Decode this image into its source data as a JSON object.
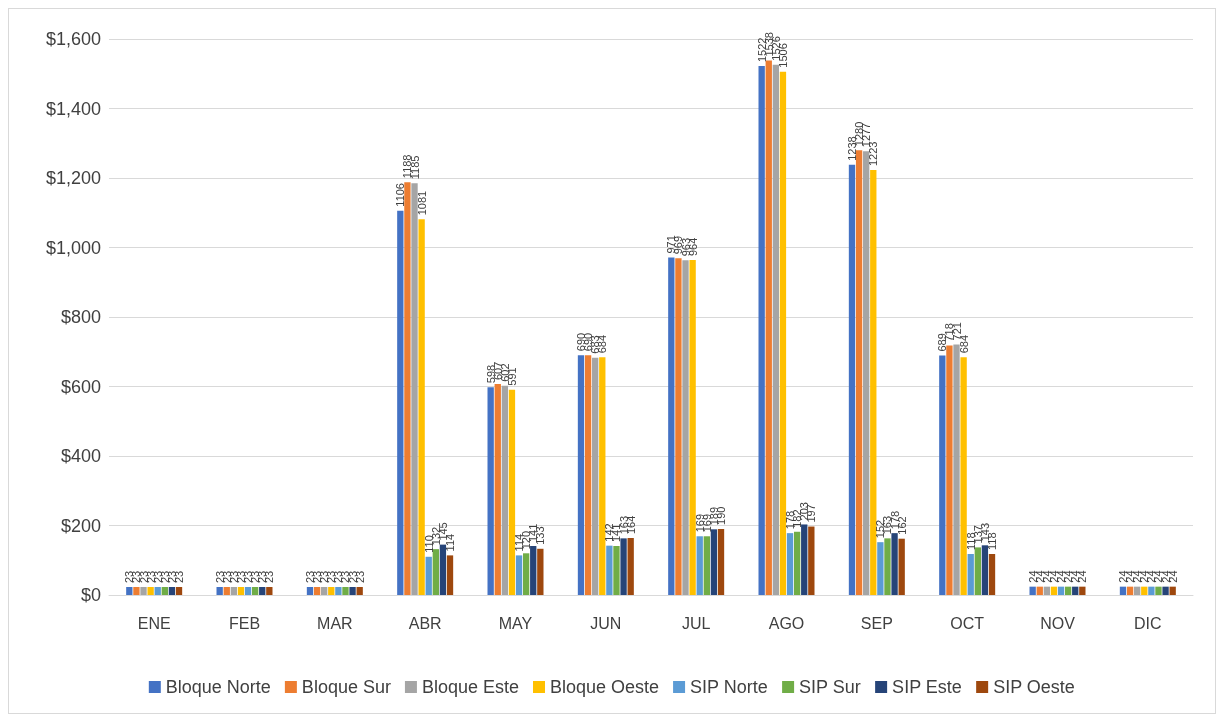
{
  "chart_data": {
    "type": "bar",
    "categories": [
      "ENE",
      "FEB",
      "MAR",
      "ABR",
      "MAY",
      "JUN",
      "JUL",
      "AGO",
      "SEP",
      "OCT",
      "NOV",
      "DIC"
    ],
    "series": [
      {
        "name": "Bloque Norte",
        "color": "#4472c4",
        "values": [
          23,
          23,
          23,
          1106,
          598,
          690,
          971,
          1522,
          1238,
          689,
          24,
          24
        ]
      },
      {
        "name": "Bloque Sur",
        "color": "#ed7d31",
        "values": [
          23,
          23,
          23,
          1188,
          607,
          690,
          969,
          1538,
          1280,
          718,
          24,
          24
        ]
      },
      {
        "name": "Bloque Este",
        "color": "#a5a5a5",
        "values": [
          23,
          23,
          23,
          1185,
          602,
          683,
          963,
          1526,
          1277,
          721,
          24,
          24
        ]
      },
      {
        "name": "Bloque Oeste",
        "color": "#ffc000",
        "values": [
          23,
          23,
          23,
          1081,
          591,
          684,
          964,
          1506,
          1223,
          684,
          24,
          24
        ]
      },
      {
        "name": "SIP Norte",
        "color": "#5b9bd5",
        "values": [
          23,
          23,
          23,
          110,
          114,
          142,
          169,
          178,
          152,
          118,
          24,
          24
        ]
      },
      {
        "name": "SIP Sur",
        "color": "#70ad47",
        "values": [
          23,
          23,
          23,
          132,
          120,
          141,
          169,
          182,
          163,
          137,
          24,
          24
        ]
      },
      {
        "name": "SIP Este",
        "color": "#264478",
        "values": [
          23,
          23,
          23,
          145,
          141,
          163,
          189,
          203,
          178,
          143,
          24,
          24
        ]
      },
      {
        "name": "SIP Oeste",
        "color": "#9e480e",
        "values": [
          23,
          23,
          23,
          114,
          133,
          164,
          190,
          197,
          162,
          118,
          24,
          24
        ]
      }
    ],
    "ylim": [
      0,
      1600
    ],
    "yticks": [
      {
        "value": 0,
        "label": "$0"
      },
      {
        "value": 200,
        "label": "$200"
      },
      {
        "value": 400,
        "label": "$400"
      },
      {
        "value": 600,
        "label": "$600"
      },
      {
        "value": 800,
        "label": "$800"
      },
      {
        "value": 1000,
        "label": "$1,000"
      },
      {
        "value": 1200,
        "label": "$1,200"
      },
      {
        "value": 1400,
        "label": "$1,400"
      },
      {
        "value": 1600,
        "label": "$1,600"
      }
    ],
    "grid": "y",
    "legend": "bottom",
    "data_labels": true
  }
}
